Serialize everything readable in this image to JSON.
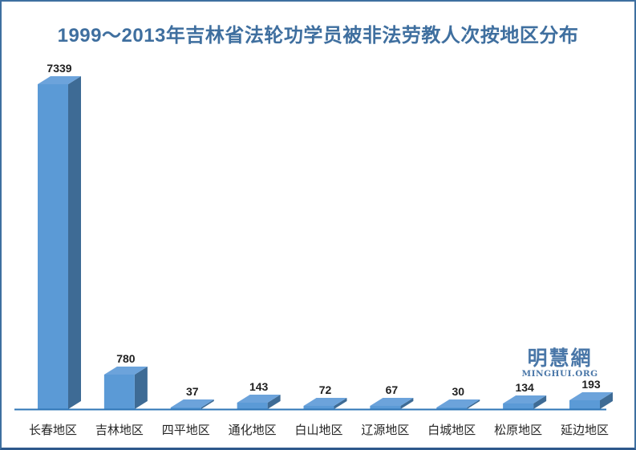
{
  "title": "1999～2013年吉林省法轮功学员被非法劳教人次按地区分布",
  "watermark": {
    "logo_text": "明慧網",
    "site_text": "MINGHUI.ORG"
  },
  "colors": {
    "bar_front": "#5B9AD6",
    "bar_side": "#3E6B95",
    "bar_top": "#6CA3DB",
    "axis": "#2E75B6",
    "title_text": "#3F6F9F",
    "value_label": "#1F1F1F",
    "category_label": "#262626",
    "border": "#3E6FA0",
    "watermark_blue": "#4A77A8"
  },
  "chart_data": {
    "type": "bar",
    "style": "3d-column",
    "title": "1999～2013年吉林省法轮功学员被非法劳教人次按地区分布",
    "categories": [
      "长春地区",
      "吉林地区",
      "四平地区",
      "通化地区",
      "白山地区",
      "辽源地区",
      "白城地区",
      "松原地区",
      "延边地区"
    ],
    "values": [
      7339,
      780,
      37,
      143,
      72,
      67,
      30,
      134,
      193
    ],
    "data_labels": true,
    "xlabel": "",
    "ylabel": "",
    "ylim": [
      0,
      7500
    ],
    "y_axis_visible": false,
    "grid": false,
    "legend": false
  }
}
